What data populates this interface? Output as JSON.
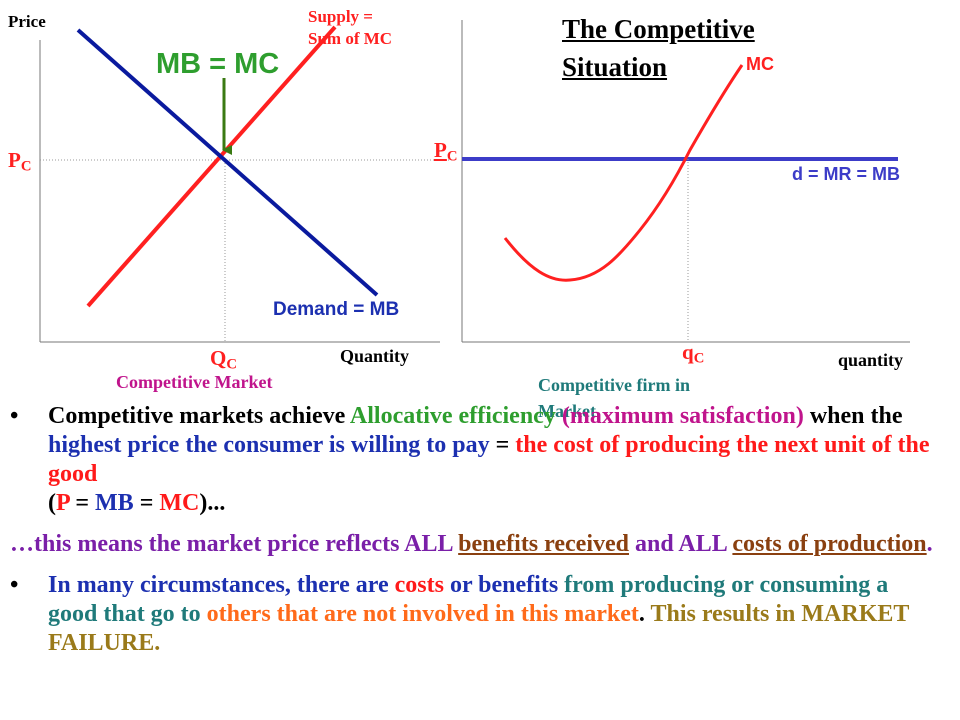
{
  "left_graph": {
    "y_axis_label": "Price",
    "x_axis_label": "Quantity",
    "price_label": "P",
    "price_sub": "C",
    "quantity_label": "Q",
    "quantity_sub": "C",
    "supply_label_line1": "Supply =",
    "supply_label_line2": "Sum of MC",
    "demand_label": "Demand = MB",
    "equilibrium_label": "MB = MC",
    "caption": "Competitive Market"
  },
  "right_graph": {
    "title_line1": "The Competitive",
    "title_line2": "Situation",
    "mc_label": "MC",
    "price_label": "P",
    "price_sub": "C",
    "demand_label": "d = MR = MB",
    "quantity_label": "q",
    "quantity_sub": "C",
    "x_axis_label": "quantity",
    "caption_line1": "Competitive firm in",
    "caption_line2": "Market"
  },
  "bullets": {
    "b1_p1": "Competitive markets achieve ",
    "b1_p2": "Allocative efficiency",
    "b1_p3": " (maximum satisfaction)",
    "b1_p4": " when the ",
    "b1_p5": "highest price the consumer is willing to pay",
    "b1_p6": " = ",
    "b1_p7": "the cost of producing the next unit of the good",
    "b1_l2_a": "(",
    "b1_l2_b": "P",
    "b1_l2_c": " = ",
    "b1_l2_d": "MB",
    "b1_l2_e": " = ",
    "b1_l2_f": "MC",
    "b1_l2_g": ")...",
    "b2_p1": "…this means the market price reflects ALL ",
    "b2_p2": "benefits received",
    "b2_p3": " and ALL ",
    "b2_p4": "costs of production",
    "b2_p5": ".",
    "b3_p1": "In many circumstances, there are ",
    "b3_p2": "costs",
    "b3_p3": " or ",
    "b3_p4": "benefits",
    "b3_p5": " from producing or consuming a good that go to ",
    "b3_p6": "others that are not involved in this market",
    "b3_p7": ". ",
    "b3_p8": "This results in MARKET FAILURE."
  },
  "colors": {
    "supply": "#ff2020",
    "demand": "#0a1a9e",
    "arrow": "#3a7a12",
    "firm_demand": "#3c3cc8",
    "allocative": "#2e9e2e",
    "maximum": "#c0148c",
    "blue_text": "#1c30b0",
    "red_text": "#ff1a1a",
    "purple_text": "#7a1fa8",
    "teal_text": "#1f7a7a",
    "orange_text": "#ff6a1a",
    "olive_text": "#9a7a1a",
    "benefits_received": "#8a4010"
  }
}
